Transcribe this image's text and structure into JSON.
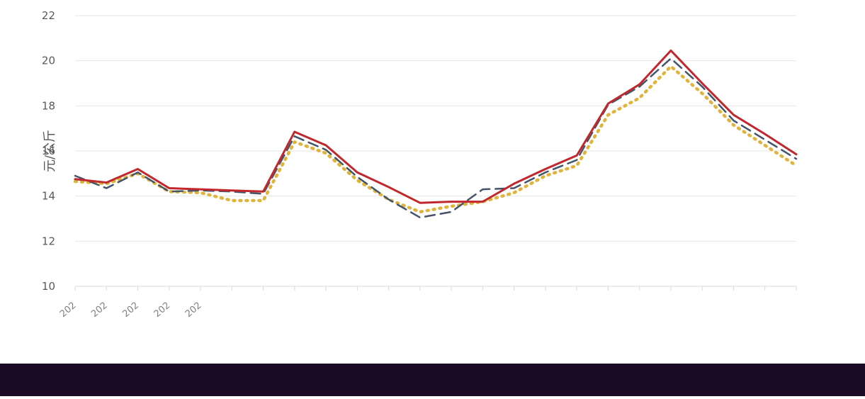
{
  "chart_data": {
    "type": "line",
    "ylabel": "元/公斤",
    "ylim": [
      10,
      22
    ],
    "yticks": [
      10,
      12,
      14,
      16,
      18,
      20,
      22
    ],
    "grid": true,
    "x_tick_labels_visible": [
      "202",
      "202",
      "202",
      "202",
      "202"
    ],
    "point_count": 24,
    "colors": {
      "series_1": "#c0282d",
      "series_2": "#44546a",
      "series_3": "#e0b43c",
      "gridline": "#e6e6e6",
      "text": "#595959",
      "band": "#1a0a24"
    },
    "series": [
      {
        "style": "solid",
        "color": "#c0282d",
        "values": [
          14.75,
          14.6,
          15.2,
          14.35,
          14.3,
          14.25,
          14.2,
          16.85,
          16.25,
          15.05,
          14.4,
          13.7,
          13.75,
          13.75,
          14.55,
          15.2,
          15.8,
          18.1,
          18.95,
          20.45,
          19.0,
          17.6,
          16.75,
          15.85
        ]
      },
      {
        "style": "dashed",
        "color": "#44546a",
        "values": [
          14.9,
          14.35,
          15.05,
          14.2,
          14.25,
          14.2,
          14.1,
          16.65,
          16.05,
          14.85,
          13.85,
          13.05,
          13.3,
          14.3,
          14.35,
          15.05,
          15.6,
          18.05,
          18.85,
          20.1,
          18.85,
          17.35,
          16.5,
          15.65
        ]
      },
      {
        "style": "dotted",
        "color": "#e0b43c",
        "values": [
          14.65,
          14.55,
          15.0,
          14.2,
          14.15,
          13.8,
          13.8,
          16.4,
          15.9,
          14.7,
          13.85,
          13.3,
          13.55,
          13.75,
          14.15,
          14.9,
          15.35,
          17.6,
          18.35,
          19.75,
          18.55,
          17.15,
          16.25,
          15.35
        ]
      }
    ]
  }
}
